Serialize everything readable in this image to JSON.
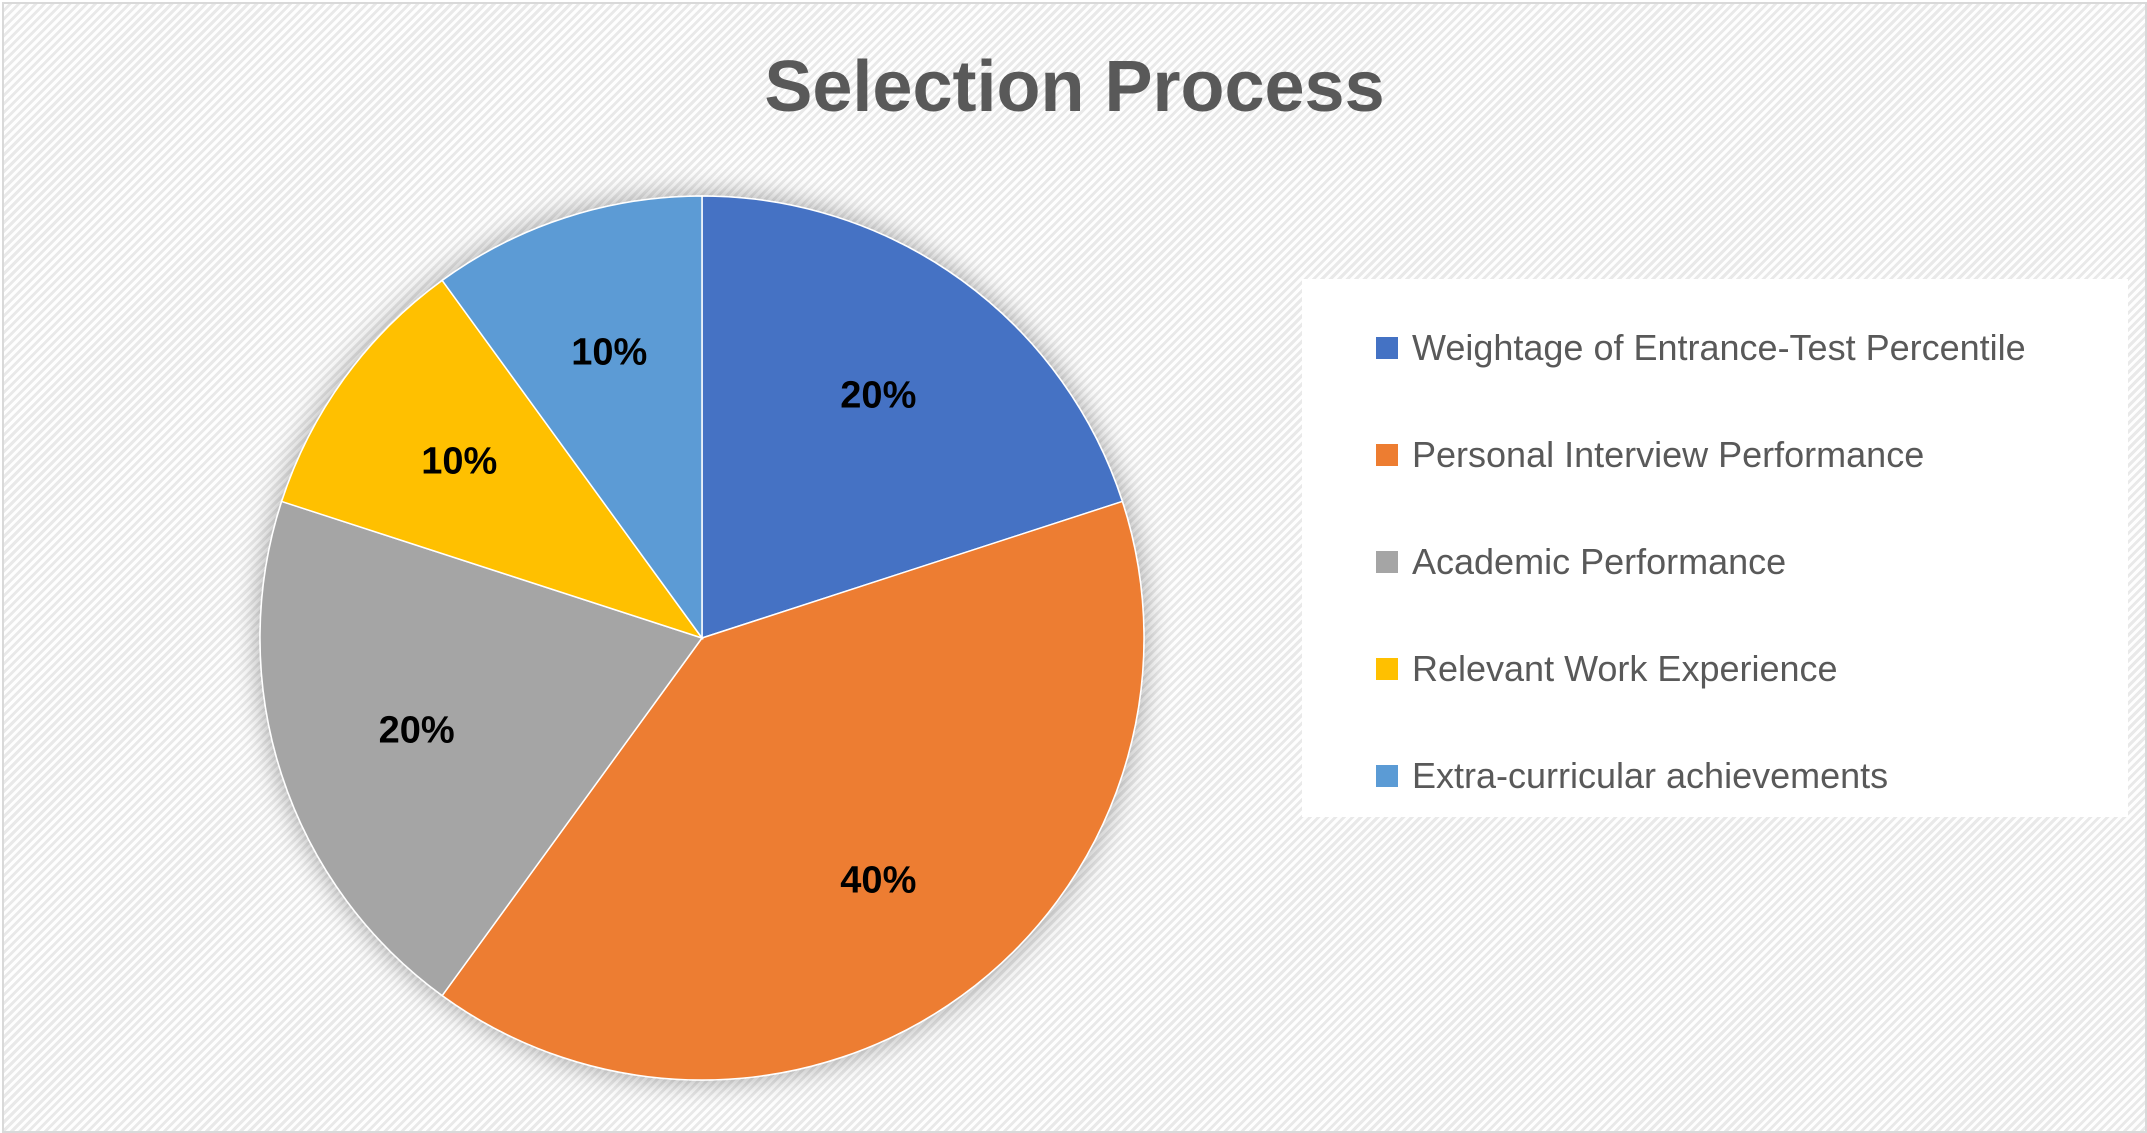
{
  "chart_data": {
    "type": "pie",
    "title": "Selection Process",
    "slices": [
      {
        "label": "Weightage of Entrance-Test Percentile",
        "value": 20,
        "display": "20%",
        "color": "#4472c4"
      },
      {
        "label": "Personal Interview Performance",
        "value": 40,
        "display": "40%",
        "color": "#ed7d31"
      },
      {
        "label": "Academic Performance",
        "value": 20,
        "display": "20%",
        "color": "#a5a5a5"
      },
      {
        "label": "Relevant Work Experience",
        "value": 10,
        "display": "10%",
        "color": "#ffc000"
      },
      {
        "label": "Extra-curricular achievements",
        "value": 10,
        "display": "10%",
        "color": "#5b9bd5"
      }
    ],
    "legend": "right",
    "start_angle": "top",
    "direction": "clockwise"
  }
}
